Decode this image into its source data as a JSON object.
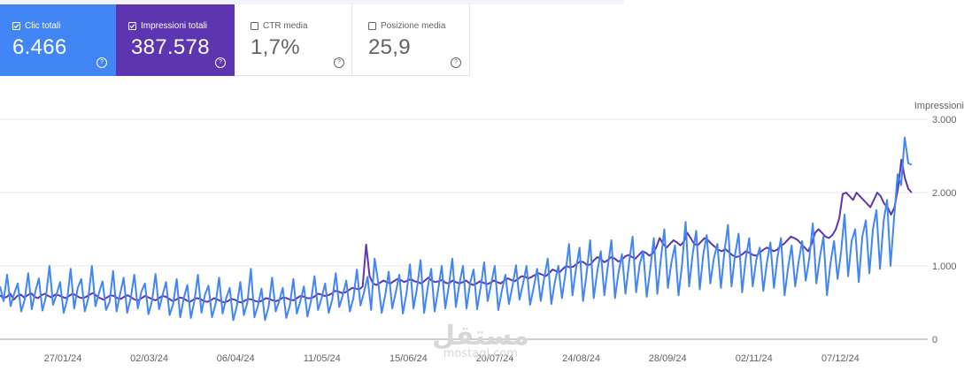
{
  "metrics": {
    "clicks": {
      "label": "Clic totali",
      "value": "6.466",
      "checked": true,
      "color": "#4285f4"
    },
    "impressions": {
      "label": "Impressioni totali",
      "value": "387.578",
      "checked": true,
      "color": "#5e35b1"
    },
    "ctr": {
      "label": "CTR media",
      "value": "1,7%",
      "checked": false
    },
    "position": {
      "label": "Posizione media",
      "value": "25,9",
      "checked": false
    }
  },
  "help_glyph": "?",
  "watermark": {
    "arabic": "مستقل",
    "latin": "mostaql.com"
  },
  "chart_data": {
    "type": "line",
    "x_tick_labels": [
      "27/01/24",
      "02/03/24",
      "06/04/24",
      "11/05/24",
      "15/06/24",
      "20/07/24",
      "24/08/24",
      "28/09/24",
      "02/11/24",
      "07/12/24"
    ],
    "y_axis_title": "Impressioni",
    "y_tick_labels": [
      "0",
      "1.000",
      "2.000",
      "3.000"
    ],
    "ylim": [
      0,
      3000
    ],
    "grid": true,
    "series": [
      {
        "name": "Impressioni totali",
        "color": "#5e35b1",
        "values": [
          600,
          560,
          580,
          620,
          540,
          590,
          610,
          570,
          600,
          630,
          580,
          560,
          600,
          620,
          590,
          570,
          610,
          600,
          580,
          560,
          590,
          620,
          600,
          570,
          560,
          580,
          610,
          630,
          590,
          560,
          540,
          570,
          600,
          590,
          560,
          550,
          580,
          600,
          570,
          540,
          530,
          560,
          590,
          570,
          550,
          530,
          560,
          590,
          580,
          550,
          520,
          540,
          570,
          560,
          530,
          510,
          540,
          560,
          550,
          520,
          510,
          530,
          560,
          540,
          520,
          500,
          520,
          550,
          540,
          510,
          500,
          530,
          550,
          540,
          520,
          510,
          530,
          560,
          550,
          530,
          520,
          540,
          570,
          560,
          540,
          530,
          560,
          590,
          580,
          560,
          560,
          580,
          620,
          610,
          590,
          600,
          620,
          660,
          650,
          630,
          640,
          670,
          700,
          690,
          680,
          720,
          1290,
          860,
          760,
          740,
          770,
          800,
          780,
          760,
          790,
          820,
          810,
          780,
          800,
          820,
          790,
          780,
          760,
          800,
          840,
          800,
          780,
          790,
          810,
          770,
          760,
          800,
          780,
          760,
          780,
          800,
          760,
          740,
          760,
          790,
          770,
          750,
          770,
          800,
          780,
          760,
          800,
          830,
          810,
          790,
          820,
          860,
          850,
          830,
          850,
          880,
          900,
          880,
          860,
          900,
          950,
          930,
          910,
          960,
          1000,
          980,
          990,
          1030,
          1060,
          1050,
          1010,
          1020,
          1080,
          1120,
          1090,
          1050,
          1080,
          1120,
          1100,
          1060,
          1080,
          1130,
          1150,
          1120,
          1100,
          1150,
          1200,
          1180,
          1140,
          1170,
          1250,
          1380,
          1300,
          1250,
          1300,
          1350,
          1320,
          1280,
          1330,
          1450,
          1380,
          1300,
          1280,
          1330,
          1380,
          1350,
          1300,
          1260,
          1220,
          1200,
          1230,
          1190,
          1150,
          1120,
          1130,
          1160,
          1200,
          1180,
          1150,
          1140,
          1180,
          1220,
          1250,
          1230,
          1200,
          1220,
          1270,
          1300,
          1350,
          1400,
          1380,
          1350,
          1300,
          1250,
          1200,
          1300,
          1450,
          1500,
          1450,
          1400,
          1380,
          1420,
          1500,
          1650,
          1980,
          2000,
          1950,
          1900,
          2000,
          1950,
          1900,
          1850,
          1800,
          1900,
          2000,
          1950,
          1850,
          1800,
          1700,
          1800,
          2050,
          2450,
          2200,
          2050,
          2000
        ]
      },
      {
        "name": "Clic totali",
        "color": "#4285f4",
        "values": [
          720,
          520,
          880,
          450,
          620,
          760,
          380,
          540,
          900,
          410,
          650,
          830,
          390,
          580,
          1000,
          470,
          610,
          780,
          360,
          540,
          960,
          420,
          700,
          820,
          380,
          560,
          1000,
          450,
          630,
          790,
          400,
          510,
          930,
          380,
          620,
          840,
          360,
          560,
          880,
          420,
          650,
          760,
          340,
          520,
          890,
          410,
          600,
          780,
          330,
          480,
          820,
          300,
          560,
          740,
          290,
          520,
          880,
          360,
          610,
          730,
          300,
          480,
          840,
          350,
          560,
          700,
          260,
          450,
          780,
          330,
          500,
          960,
          300,
          460,
          690,
          260,
          440,
          840,
          380,
          520,
          700,
          290,
          460,
          820,
          350,
          520,
          720,
          310,
          520,
          860,
          400,
          560,
          760,
          360,
          540,
          900,
          440,
          600,
          800,
          380,
          560,
          950,
          460,
          640,
          850,
          400,
          1100,
          780,
          360,
          600,
          920,
          420,
          640,
          880,
          350,
          620,
          1020,
          420,
          700,
          1080,
          360,
          700,
          960,
          380,
          680,
          1000,
          420,
          720,
          1100,
          440,
          760,
          1000,
          420,
          760,
          950,
          410,
          700,
          1050,
          520,
          760,
          1000,
          400,
          660,
          880,
          480,
          720,
          1010,
          540,
          760,
          1000,
          470,
          700,
          960,
          520,
          840,
          1100,
          480,
          780,
          1000,
          560,
          900,
          1300,
          600,
          960,
          1250,
          520,
          900,
          1350,
          560,
          920,
          1200,
          600,
          1000,
          1350,
          560,
          900,
          1160,
          620,
          1040,
          1400,
          640,
          1020,
          1200,
          580,
          960,
          1380,
          620,
          1100,
          1500,
          700,
          1050,
          1280,
          600,
          1020,
          1600,
          720,
          1160,
          1480,
          680,
          1160,
          1420,
          760,
          1100,
          1300,
          700,
          1200,
          1560,
          720,
          1160,
          1440,
          640,
          1100,
          1380,
          720,
          1080,
          1250,
          660,
          1040,
          1320,
          700,
          1120,
          1380,
          600,
          980,
          1280,
          720,
          1060,
          1340,
          800,
          1100,
          1580,
          760,
          1120,
          1400,
          600,
          1040,
          1340,
          820,
          1200,
          1700,
          860,
          1340,
          1500,
          780,
          1400,
          1620,
          900,
          1500,
          1760,
          960,
          1600,
          1900,
          1000,
          1650,
          2250,
          2100,
          2750,
          2400,
          2380
        ]
      }
    ]
  }
}
